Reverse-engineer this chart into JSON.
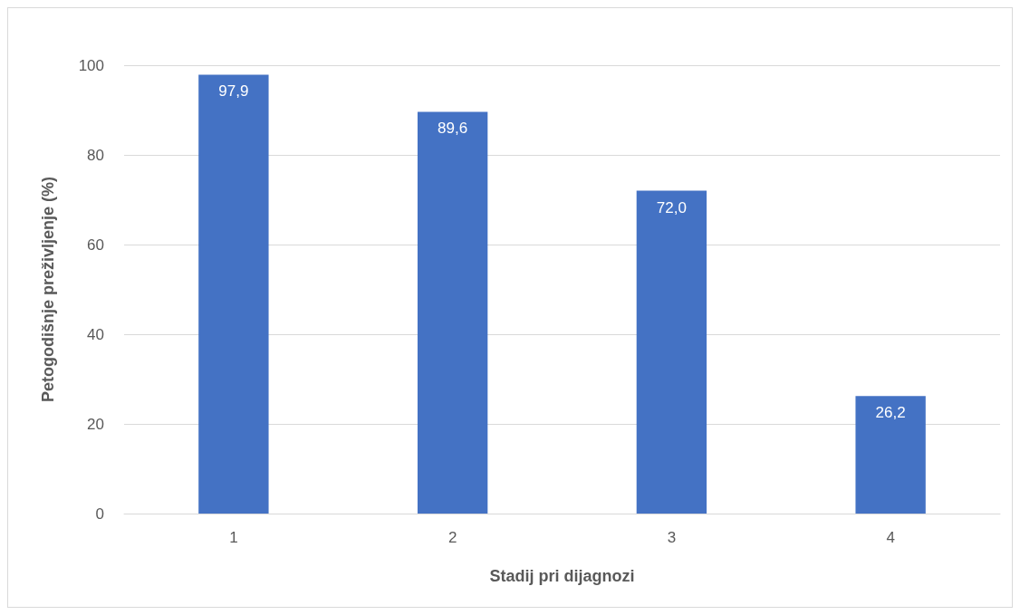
{
  "chart_data": {
    "type": "bar",
    "xlabel": "Stadij pri dijagnozi",
    "ylabel": "Petogodišnje preživljenje (%)",
    "categories": [
      "1",
      "2",
      "3",
      "4"
    ],
    "values": [
      97.9,
      89.6,
      72.0,
      26.2
    ],
    "value_labels": [
      "97,9",
      "89,6",
      "72,0",
      "26,2"
    ],
    "color": "#4472c4",
    "ylim": [
      0,
      100
    ],
    "yticks": [
      0,
      20,
      40,
      60,
      80,
      100
    ],
    "grid": "y"
  }
}
